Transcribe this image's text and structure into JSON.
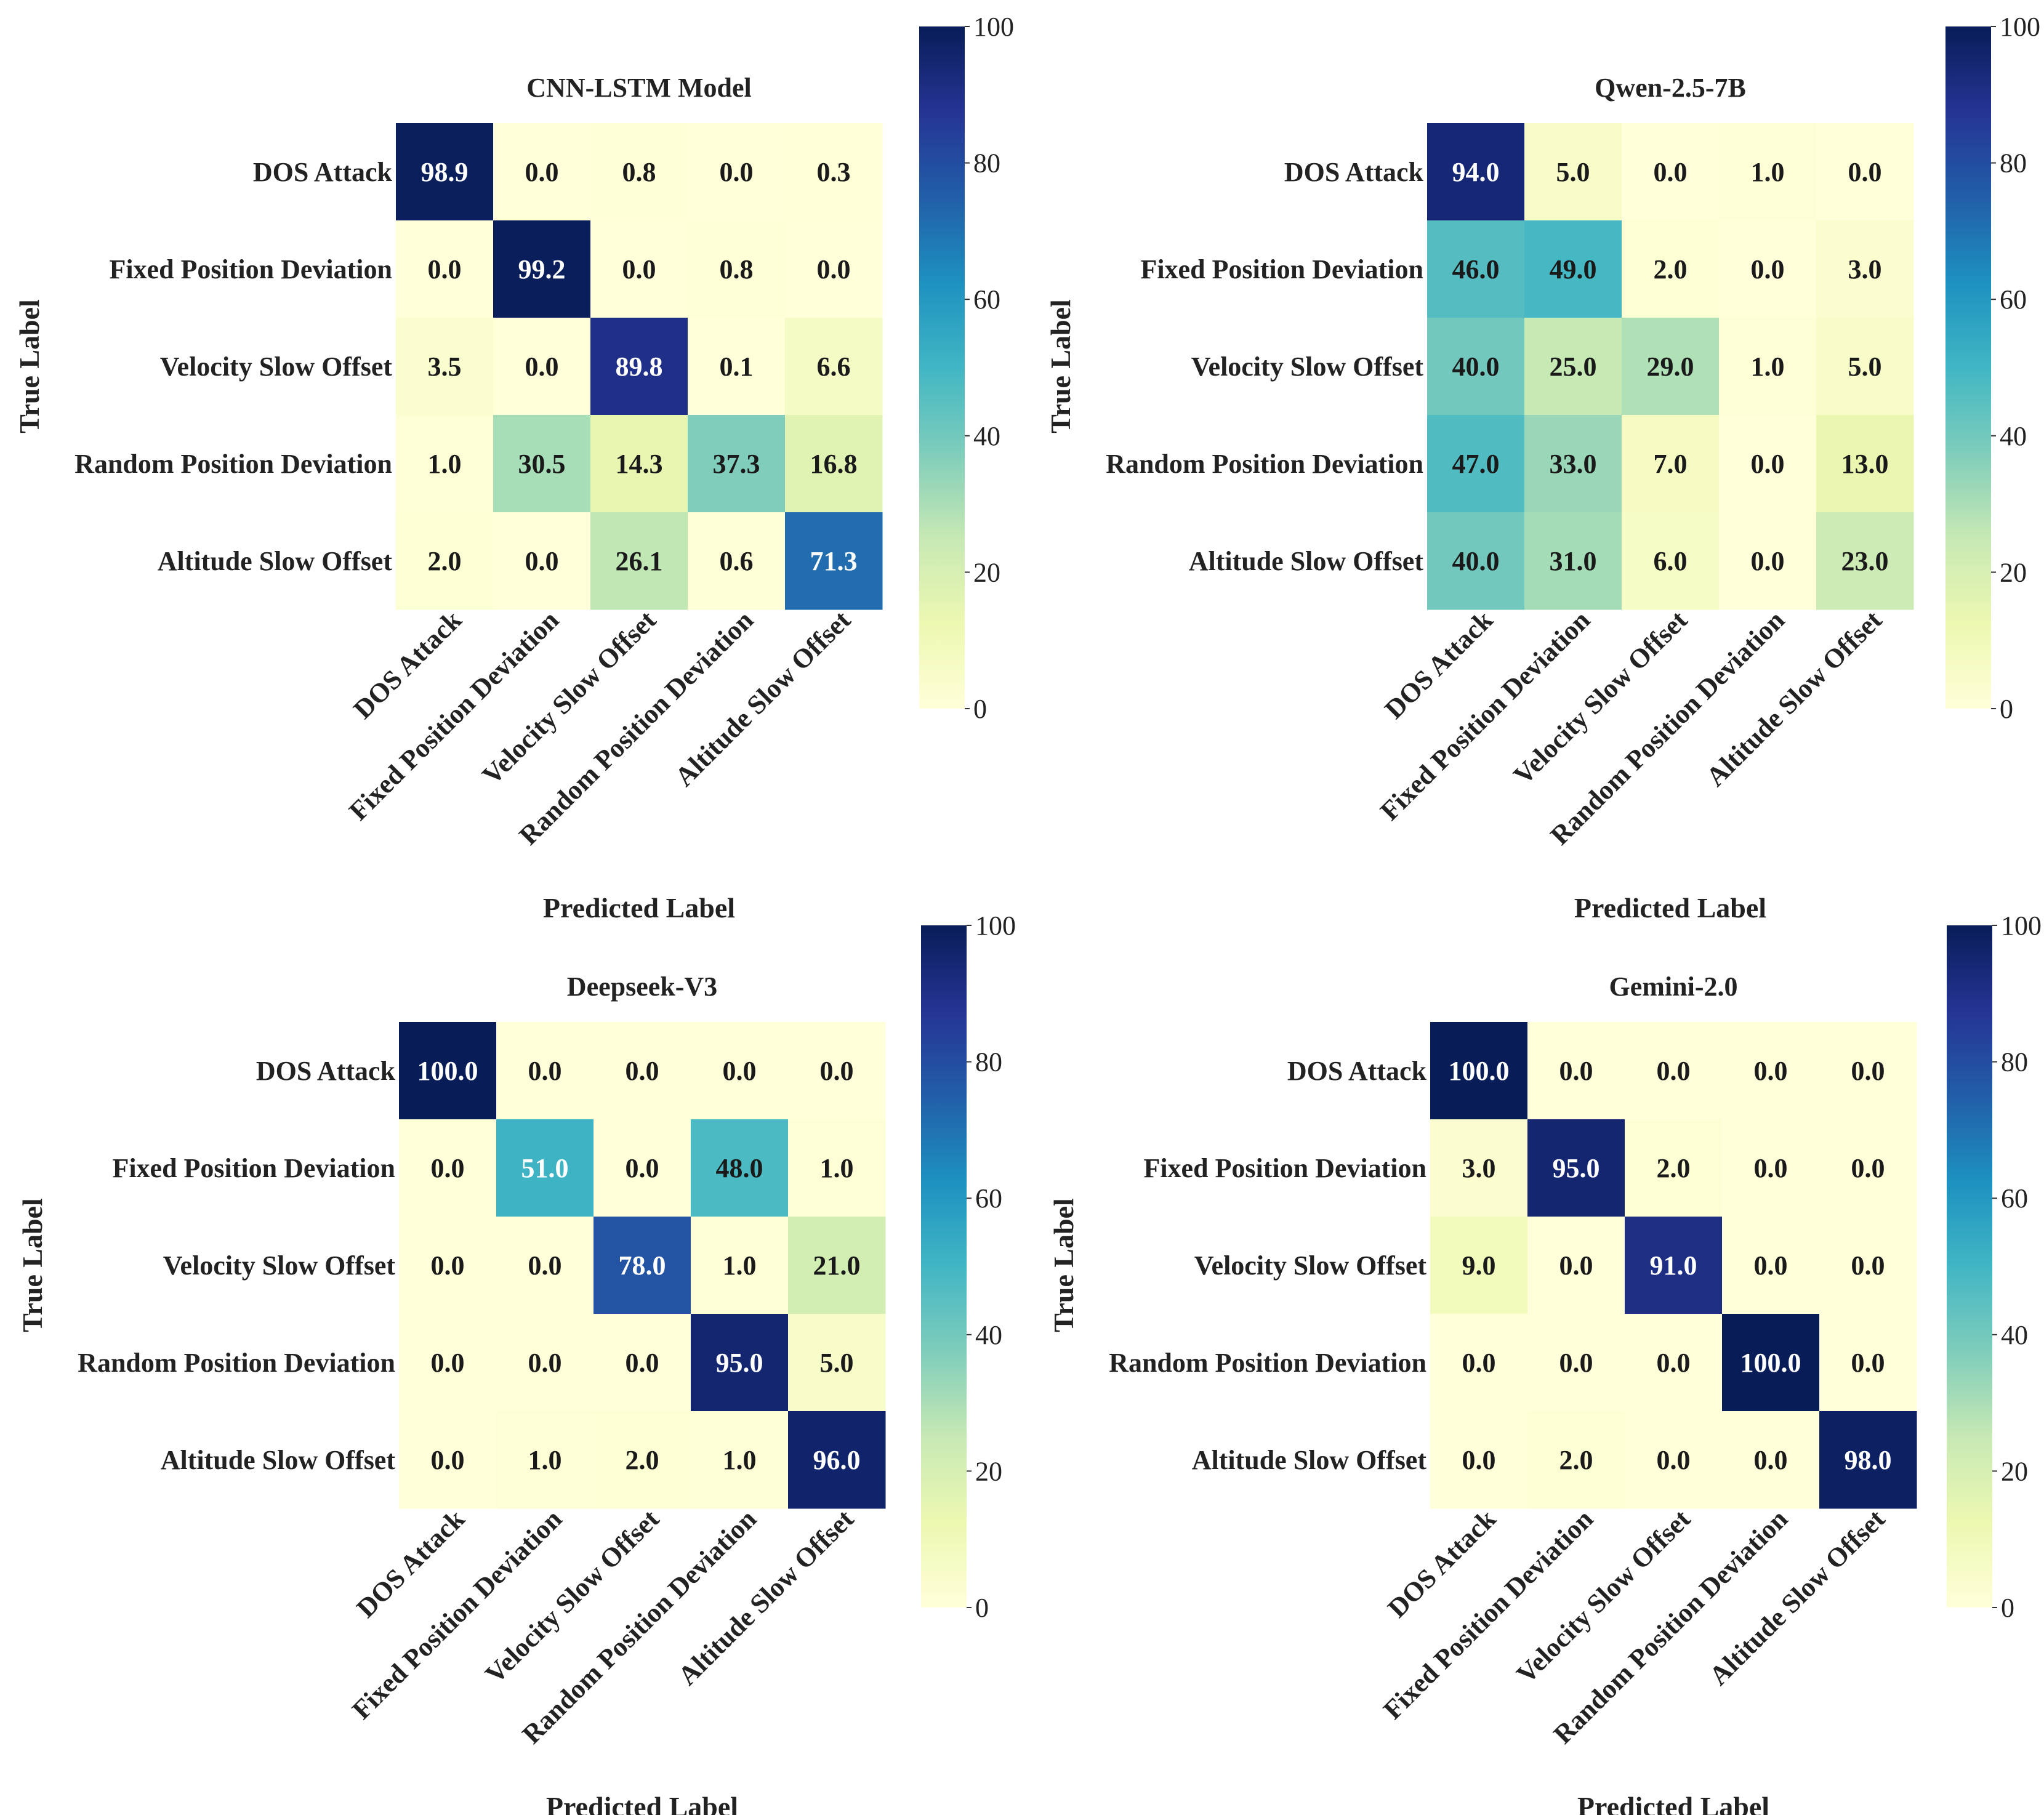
{
  "figure": {
    "colormap": "YlGnBu",
    "colormap_stops": [
      "#ffffd9",
      "#edf8b1",
      "#c7e9b4",
      "#7fcdbb",
      "#41b6c4",
      "#1d91c0",
      "#225ea8",
      "#253494",
      "#081d58"
    ],
    "text_dark": "#1a1a1a",
    "text_light": "#ffffff"
  },
  "chart_data": [
    {
      "type": "heatmap",
      "title": "CNN-LSTM Model",
      "xlabel": "Predicted Label",
      "ylabel": "True Label",
      "row_labels": [
        "DOS Attack",
        "Fixed Position Deviation",
        "Velocity Slow Offset",
        "Random Position Deviation",
        "Altitude Slow Offset"
      ],
      "col_labels": [
        "DOS Attack",
        "Fixed Position Deviation",
        "Velocity Slow Offset",
        "Random Position Deviation",
        "Altitude Slow Offset"
      ],
      "values": [
        [
          98.9,
          0.0,
          0.8,
          0.0,
          0.3
        ],
        [
          0.0,
          99.2,
          0.0,
          0.8,
          0.0
        ],
        [
          3.5,
          0.0,
          89.8,
          0.1,
          6.6
        ],
        [
          1.0,
          30.5,
          14.3,
          37.3,
          16.8
        ],
        [
          2.0,
          0.0,
          26.1,
          0.6,
          71.3
        ]
      ],
      "value_format": "0.0",
      "vmin": 0,
      "vmax": 100,
      "colorbar_ticks": [
        "0",
        "20",
        "40",
        "60",
        "80",
        "100"
      ]
    },
    {
      "type": "heatmap",
      "title": "Qwen-2.5-7B",
      "xlabel": "Predicted Label",
      "ylabel": "True Label",
      "row_labels": [
        "DOS Attack",
        "Fixed Position Deviation",
        "Velocity Slow Offset",
        "Random Position Deviation",
        "Altitude Slow Offset"
      ],
      "col_labels": [
        "DOS Attack",
        "Fixed Position Deviation",
        "Velocity Slow Offset",
        "Random Position Deviation",
        "Altitude Slow Offset"
      ],
      "values": [
        [
          94.0,
          5.0,
          0.0,
          1.0,
          0.0
        ],
        [
          46.0,
          49.0,
          2.0,
          0.0,
          3.0
        ],
        [
          40.0,
          25.0,
          29.0,
          1.0,
          5.0
        ],
        [
          47.0,
          33.0,
          7.0,
          0.0,
          13.0
        ],
        [
          40.0,
          31.0,
          6.0,
          0.0,
          23.0
        ]
      ],
      "value_format": "0.0",
      "vmin": 0,
      "vmax": 100,
      "colorbar_ticks": [
        "0",
        "20",
        "40",
        "60",
        "80",
        "100"
      ]
    },
    {
      "type": "heatmap",
      "title": "Deepseek-V3",
      "xlabel": "Predicted Label",
      "ylabel": "True Label",
      "row_labels": [
        "DOS Attack",
        "Fixed Position Deviation",
        "Velocity Slow Offset",
        "Random Position Deviation",
        "Altitude Slow Offset"
      ],
      "col_labels": [
        "DOS Attack",
        "Fixed Position Deviation",
        "Velocity Slow Offset",
        "Random Position Deviation",
        "Altitude Slow Offset"
      ],
      "values": [
        [
          100.0,
          0.0,
          0.0,
          0.0,
          0.0
        ],
        [
          0.0,
          51.0,
          0.0,
          48.0,
          1.0
        ],
        [
          0.0,
          0.0,
          78.0,
          1.0,
          21.0
        ],
        [
          0.0,
          0.0,
          0.0,
          95.0,
          5.0
        ],
        [
          0.0,
          1.0,
          2.0,
          1.0,
          96.0
        ]
      ],
      "value_format": "0.0",
      "vmin": 0,
      "vmax": 100,
      "colorbar_ticks": [
        "0",
        "20",
        "40",
        "60",
        "80",
        "100"
      ]
    },
    {
      "type": "heatmap",
      "title": "Gemini-2.0",
      "xlabel": "Predicted Label",
      "ylabel": "True Label",
      "row_labels": [
        "DOS Attack",
        "Fixed Position Deviation",
        "Velocity Slow Offset",
        "Random Position Deviation",
        "Altitude Slow Offset"
      ],
      "col_labels": [
        "DOS Attack",
        "Fixed Position Deviation",
        "Velocity Slow Offset",
        "Random Position Deviation",
        "Altitude Slow Offset"
      ],
      "values": [
        [
          100.0,
          0.0,
          0.0,
          0.0,
          0.0
        ],
        [
          3.0,
          95.0,
          2.0,
          0.0,
          0.0
        ],
        [
          9.0,
          0.0,
          91.0,
          0.0,
          0.0
        ],
        [
          0.0,
          0.0,
          0.0,
          100.0,
          0.0
        ],
        [
          0.0,
          2.0,
          0.0,
          0.0,
          98.0
        ]
      ],
      "value_format": "0.0",
      "vmin": 0,
      "vmax": 100,
      "colorbar_ticks": [
        "0",
        "20",
        "40",
        "60",
        "80",
        "100"
      ]
    }
  ]
}
